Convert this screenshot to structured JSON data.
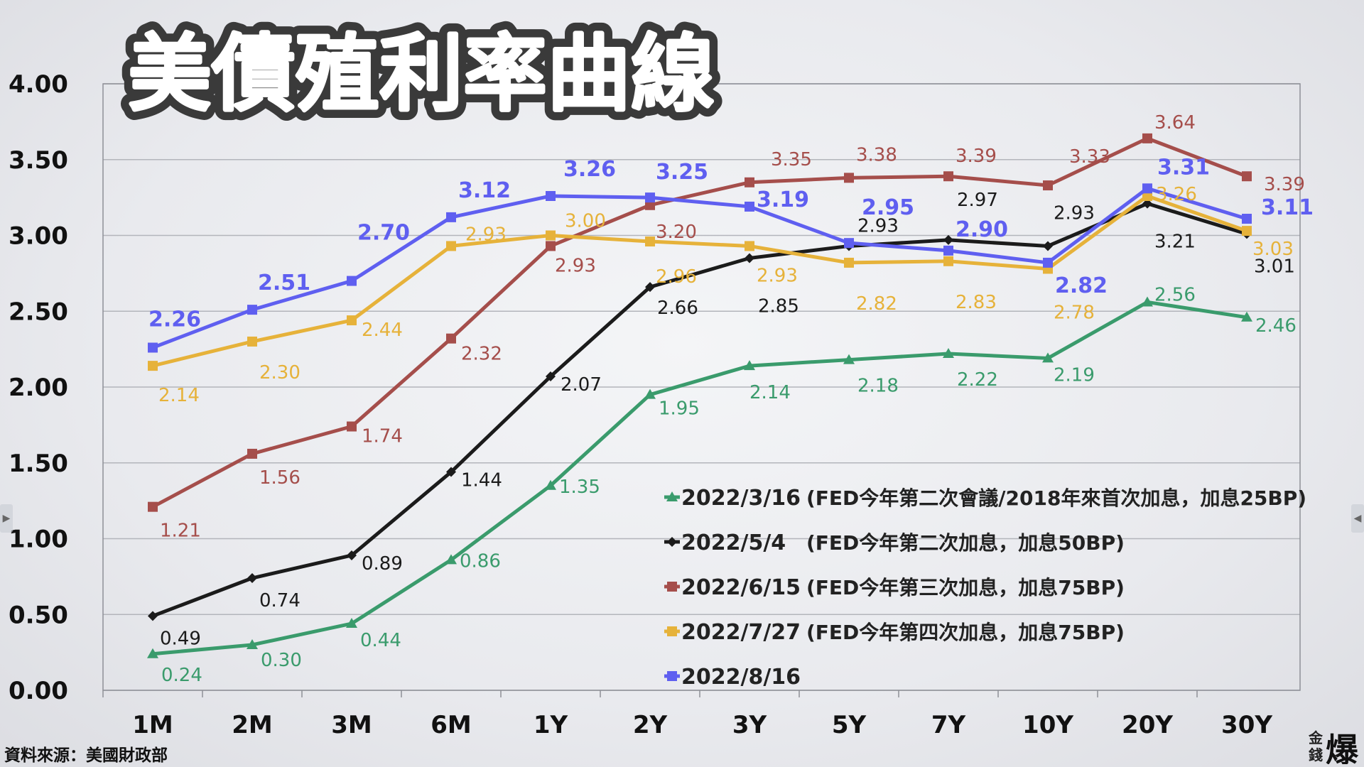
{
  "title": "美債殖利率曲線",
  "source": "資料來源：美國財政部",
  "logo_text": "金錢爆",
  "chart_data": {
    "type": "line",
    "title": "美債殖利率曲線",
    "xlabel": "",
    "ylabel": "",
    "ylim": [
      0,
      4
    ],
    "yticks": [
      "0.00",
      "0.50",
      "1.00",
      "1.50",
      "2.00",
      "2.50",
      "3.00",
      "3.50",
      "4.00"
    ],
    "categories": [
      "1M",
      "2M",
      "3M",
      "6M",
      "1Y",
      "2Y",
      "3Y",
      "5Y",
      "7Y",
      "10Y",
      "20Y",
      "30Y"
    ],
    "grid": true,
    "legend_position": "bottom-right",
    "series": [
      {
        "name": "2022/3/16",
        "note": "(FED今年第二次會議/2018年來首次加息，加息25BP)",
        "color": "#3a9b6c",
        "marker": "triangle",
        "values": [
          0.24,
          0.3,
          0.44,
          0.86,
          1.35,
          1.95,
          2.14,
          2.18,
          2.22,
          2.19,
          2.56,
          2.46
        ],
        "labels": [
          "0.24",
          "0.30",
          "0.44",
          "0.86",
          "1.35",
          "1.95",
          "2.14",
          "2.18",
          "2.22",
          "2.19",
          "2.56",
          "2.46"
        ]
      },
      {
        "name": "2022/5/4",
        "note": "(FED今年第二次加息，加息50BP)",
        "color": "#1b1b1b",
        "marker": "diamond",
        "values": [
          0.49,
          0.74,
          0.89,
          1.44,
          2.07,
          2.66,
          2.85,
          2.93,
          2.97,
          2.93,
          3.21,
          3.01
        ],
        "labels": [
          "0.49",
          "0.74",
          "0.89",
          "1.44",
          "2.07",
          "2.66",
          "2.85",
          "2.93",
          "2.97",
          "2.93",
          "3.21",
          "3.01"
        ]
      },
      {
        "name": "2022/6/15",
        "note": "(FED今年第三次加息，加息75BP)",
        "color": "#a54e4b",
        "marker": "square",
        "values": [
          1.21,
          1.56,
          1.74,
          2.32,
          2.93,
          3.2,
          3.35,
          3.38,
          3.39,
          3.33,
          3.64,
          3.39
        ],
        "labels": [
          "1.21",
          "1.56",
          "1.74",
          "2.32",
          "2.93",
          "3.20",
          "3.35",
          "3.38",
          "3.39",
          "3.33",
          "3.64",
          "3.39"
        ]
      },
      {
        "name": "2022/7/27",
        "note": "(FED今年第四次加息，加息75BP)",
        "color": "#e6b23a",
        "marker": "square",
        "values": [
          2.14,
          2.3,
          2.44,
          2.93,
          3.0,
          2.96,
          2.93,
          2.82,
          2.83,
          2.78,
          3.26,
          3.03
        ],
        "labels": [
          "2.14",
          "2.30",
          "2.44",
          "2.93",
          "3.00",
          "2.96",
          "2.93",
          "2.82",
          "2.83",
          "2.78",
          "3.26",
          "3.03"
        ]
      },
      {
        "name": "2022/8/16",
        "note": "",
        "color": "#5f5ff0",
        "marker": "square",
        "values": [
          2.26,
          2.51,
          2.7,
          3.12,
          3.26,
          3.25,
          3.19,
          2.95,
          2.9,
          2.82,
          3.31,
          3.11
        ],
        "labels": [
          "2.26",
          "2.51",
          "2.70",
          "3.12",
          "3.26",
          "3.25",
          "3.19",
          "2.95",
          "2.90",
          "2.82",
          "3.31",
          "3.11"
        ]
      }
    ]
  }
}
